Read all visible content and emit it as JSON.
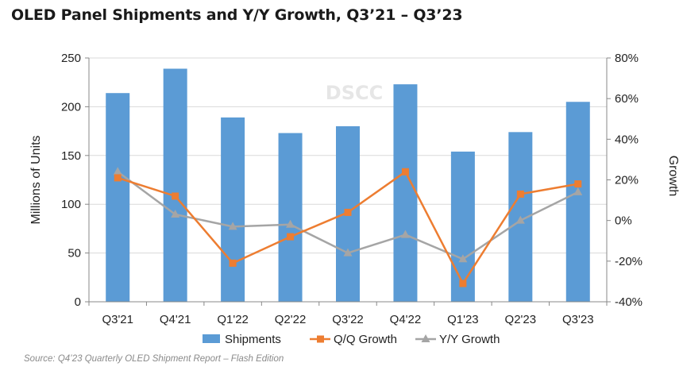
{
  "title": "OLED Panel Shipments and Y/Y Growth, Q3’21 – Q3’23",
  "source": "Source: Q4’23 Quarterly OLED Shipment Report – Flash Edition",
  "watermark": "DSCC",
  "chart_data": {
    "type": "bar",
    "categories": [
      "Q3'21",
      "Q4'21",
      "Q1'22",
      "Q2'22",
      "Q3'22",
      "Q4'22",
      "Q1'23",
      "Q2'23",
      "Q3'23"
    ],
    "ylabel": "Millions of Units",
    "y2label": "Growth",
    "ylim": [
      0,
      250
    ],
    "yticks": [
      "0",
      "50",
      "100",
      "150",
      "200",
      "250"
    ],
    "y2lim": [
      -40,
      80
    ],
    "y2ticks": [
      "-40%",
      "-20%",
      "0%",
      "20%",
      "40%",
      "60%",
      "80%"
    ],
    "grid": true,
    "legend_position": "bottom",
    "colors": {
      "bar": "#5b9bd5",
      "qq": "#ed7d31",
      "yy": "#a5a5a5",
      "grid": "#d9d9d9"
    },
    "series": [
      {
        "name": "Shipments",
        "axis": "left",
        "type": "bar",
        "values": [
          214,
          239,
          189,
          173,
          180,
          223,
          154,
          174,
          205
        ]
      },
      {
        "name": "Q/Q Growth",
        "axis": "right",
        "type": "line",
        "values": [
          21,
          12,
          -21,
          -8,
          4,
          24,
          -31,
          13,
          18
        ]
      },
      {
        "name": "Y/Y Growth",
        "axis": "right",
        "type": "line",
        "values": [
          24,
          3,
          -3,
          -2,
          -16,
          -7,
          -19,
          0,
          14
        ]
      }
    ]
  }
}
